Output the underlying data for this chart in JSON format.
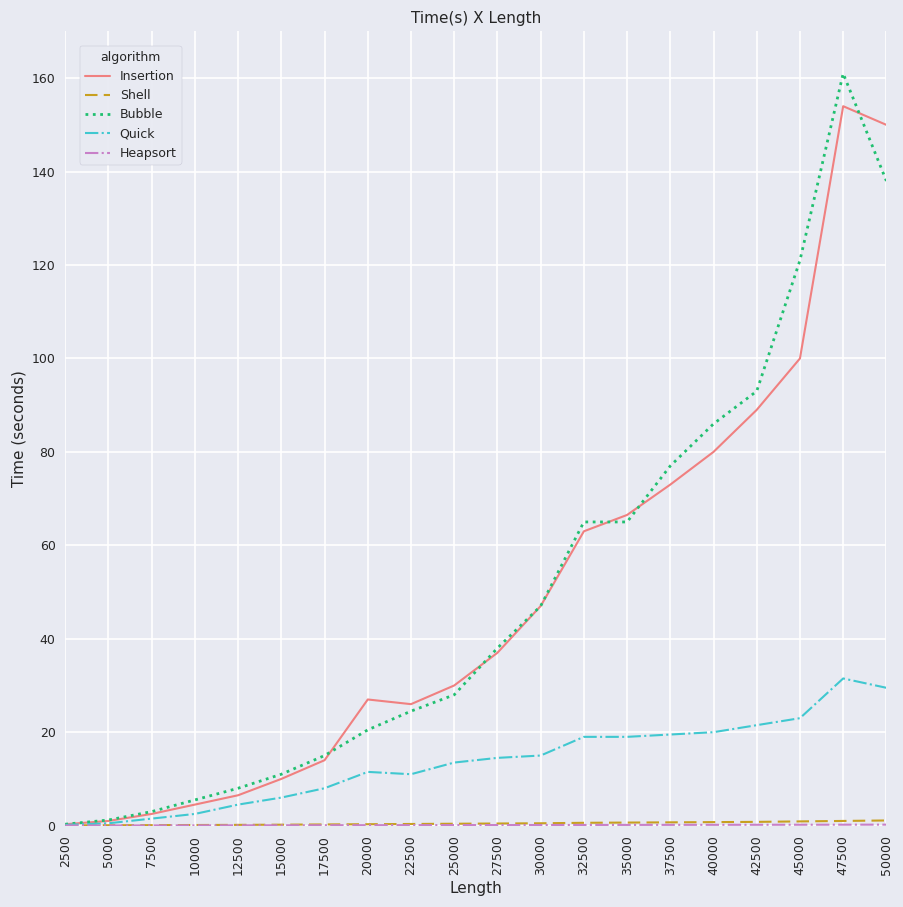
{
  "title": "Time(s) X Length",
  "xlabel": "Length",
  "ylabel": "Time (seconds)",
  "background_color": "#dde0ea",
  "plot_background": "#e8eaf2",
  "x_values": [
    2500,
    5000,
    7500,
    10000,
    12500,
    15000,
    17500,
    20000,
    22500,
    25000,
    27500,
    30000,
    32500,
    35000,
    37500,
    40000,
    42500,
    45000,
    47500,
    50000
  ],
  "insertion": [
    0.3,
    1.0,
    2.5,
    4.5,
    6.5,
    10.0,
    14.0,
    27.0,
    26.0,
    30.0,
    37.0,
    47.0,
    63.0,
    66.5,
    73.0,
    80.0,
    89.0,
    100.0,
    154.0,
    150.0
  ],
  "shell": [
    0.05,
    0.08,
    0.1,
    0.13,
    0.16,
    0.2,
    0.25,
    0.3,
    0.35,
    0.4,
    0.45,
    0.5,
    0.6,
    0.65,
    0.7,
    0.75,
    0.8,
    0.9,
    1.0,
    1.1
  ],
  "bubble": [
    0.3,
    1.2,
    3.0,
    5.5,
    8.0,
    11.0,
    15.0,
    20.5,
    24.5,
    28.0,
    38.0,
    47.0,
    65.0,
    65.0,
    77.0,
    86.0,
    93.0,
    121.0,
    161.0,
    138.0
  ],
  "quick": [
    0.15,
    0.5,
    1.5,
    2.5,
    4.5,
    6.0,
    8.0,
    11.5,
    11.0,
    13.5,
    14.5,
    15.0,
    19.0,
    19.0,
    19.5,
    20.0,
    21.5,
    23.0,
    31.5,
    29.5
  ],
  "heapsort": [
    0.02,
    0.03,
    0.04,
    0.05,
    0.06,
    0.07,
    0.08,
    0.09,
    0.1,
    0.11,
    0.12,
    0.13,
    0.14,
    0.15,
    0.16,
    0.17,
    0.18,
    0.19,
    0.2,
    0.21
  ],
  "insertion_color": "#f08080",
  "shell_color": "#c8a020",
  "bubble_color": "#20c070",
  "quick_color": "#40c8d0",
  "heapsort_color": "#c880c8",
  "ylim": [
    0,
    170
  ],
  "yticks": [
    0,
    20,
    40,
    60,
    80,
    100,
    120,
    140,
    160
  ],
  "legend_title": "algorithm"
}
